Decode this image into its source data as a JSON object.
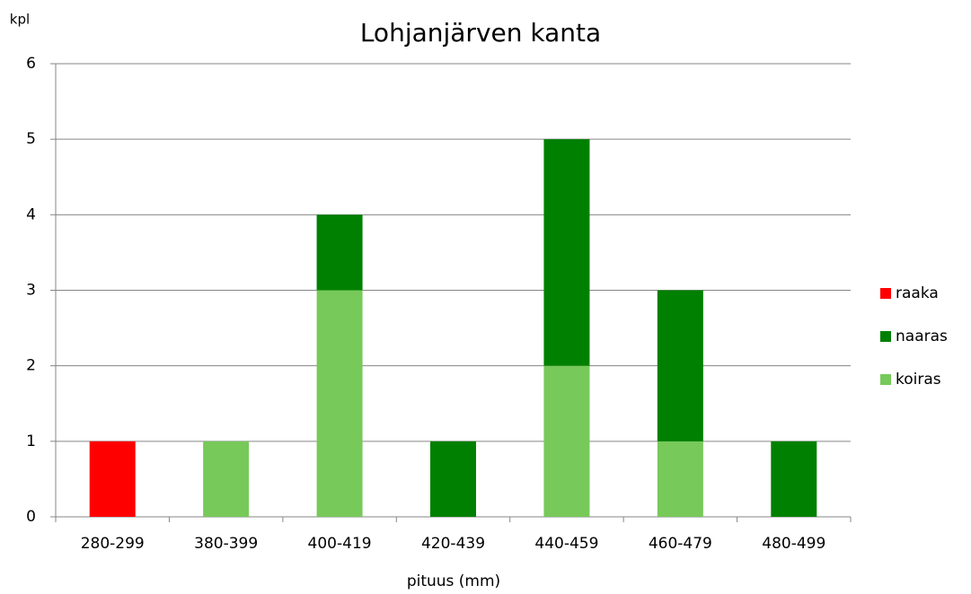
{
  "chart_data": {
    "type": "stacked_bar",
    "title": "Lohjanjärven kanta",
    "y_label": "kpl",
    "x_label": "pituus (mm)",
    "categories": [
      "280-299",
      "380-399",
      "400-419",
      "420-439",
      "440-459",
      "460-479",
      "480-499"
    ],
    "series": [
      {
        "name": "koiras",
        "color": "#77c95a",
        "values": [
          0,
          1,
          3,
          0,
          2,
          1,
          0
        ]
      },
      {
        "name": "naaras",
        "color": "#008000",
        "values": [
          0,
          0,
          1,
          1,
          3,
          2,
          1
        ]
      },
      {
        "name": "raaka",
        "color": "#ff0000",
        "values": [
          1,
          0,
          0,
          0,
          0,
          0,
          0
        ]
      }
    ],
    "ylim": [
      0,
      6
    ],
    "yticks": [
      0,
      1,
      2,
      3,
      4,
      5,
      6
    ],
    "grid": true,
    "legend": "right"
  }
}
